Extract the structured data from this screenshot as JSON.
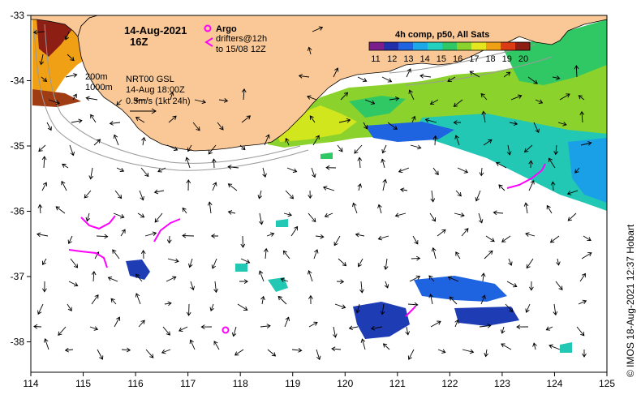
{
  "title": {
    "date": "14-Aug-2021",
    "hour": "16Z"
  },
  "legend": {
    "argo_label": "Argo",
    "drifters_line1": "drifters@12h",
    "drifters_line2": "to 15/08 12Z",
    "argo_color": "#ff00ff",
    "drifter_color": "#ff00ff"
  },
  "product": {
    "line1": "NRT00 GSL",
    "line2": "14-Aug 18:00Z",
    "line3": "0.5m/s (1kt 24h)"
  },
  "bathymetry": {
    "label_200": "200m",
    "label_1000": "1000m"
  },
  "colorbar": {
    "title": "4h comp, p50, All Sats",
    "ticks": [
      "11",
      "12",
      "13",
      "14",
      "15",
      "16",
      "17",
      "18",
      "19",
      "20"
    ],
    "colors": [
      "#7a1e8c",
      "#2030a8",
      "#1e64e0",
      "#1aa8e6",
      "#22d0c0",
      "#30c864",
      "#8cd22c",
      "#e6e61e",
      "#f0a014",
      "#dc3c14",
      "#8c1e14"
    ]
  },
  "credit": "© IMOS 18-Aug-2021 12:37 Hobart",
  "axes": {
    "x_ticks": [
      "114",
      "115",
      "116",
      "117",
      "118",
      "119",
      "120",
      "121",
      "122",
      "123",
      "124",
      "125"
    ],
    "y_ticks": [
      "-33",
      "-34",
      "-35",
      "-36",
      "-37",
      "-38"
    ]
  },
  "colors": {
    "land": "#fac896",
    "frame": "#000000",
    "arrow": "#000000"
  }
}
